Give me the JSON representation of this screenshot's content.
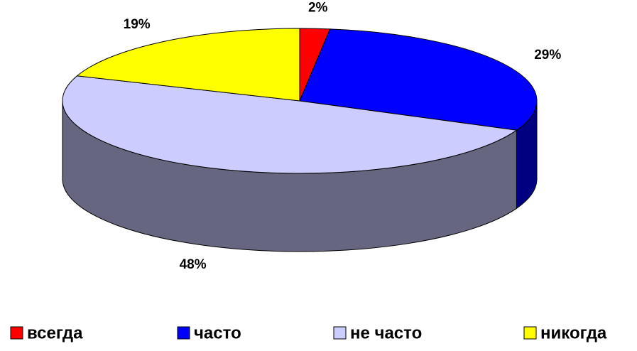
{
  "chart_data": {
    "type": "pie3d",
    "categories": [
      "всегда",
      "часто",
      "не часто",
      "никогда"
    ],
    "values": [
      2,
      29,
      48,
      19
    ],
    "value_labels": [
      "2%",
      "29%",
      "48%",
      "19%"
    ],
    "colors": [
      "#ff0000",
      "#0000ff",
      "#ccccff",
      "#ffff00"
    ],
    "legend": "bottom"
  }
}
